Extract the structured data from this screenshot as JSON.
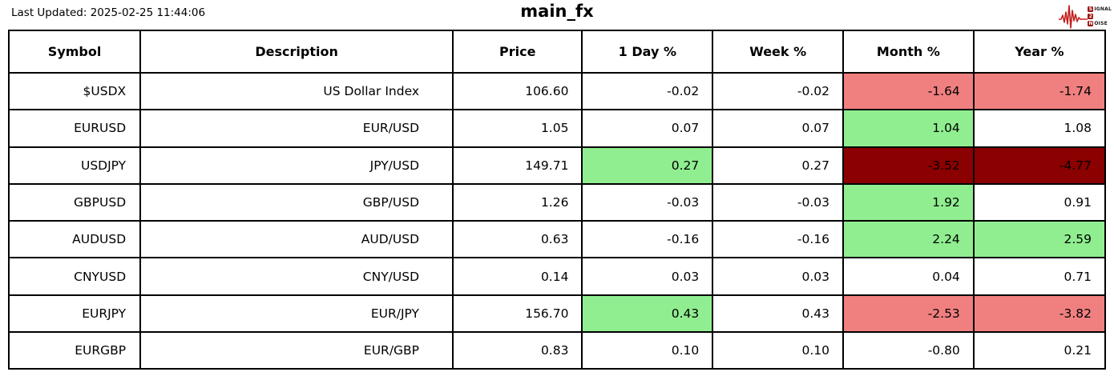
{
  "header": {
    "last_updated": "Last Updated: 2025-02-25 11:44:06"
  },
  "logo": {
    "name": "signal-2-noise-logo",
    "lines": [
      {
        "badge": "S",
        "rest": "IGNAL"
      },
      {
        "badge": "2",
        "rest": ""
      },
      {
        "badge": "N",
        "rest": "OISE"
      }
    ]
  },
  "colors": {
    "up": "#90ee90",
    "down": "#f08080",
    "down_strong": "#8b0000",
    "logo_red": "#c41e1e",
    "border": "#000000"
  },
  "chart_data": {
    "type": "table",
    "title": "main_fx",
    "columns": [
      "Symbol",
      "Description",
      "Price",
      "1 Day %",
      "Week %",
      "Month %",
      "Year %"
    ],
    "rows": [
      {
        "symbol": "$USDX",
        "description": "US Dollar Index",
        "price": "106.60",
        "day": {
          "t": "-0.02",
          "bg": null
        },
        "week": {
          "t": "-0.02",
          "bg": null
        },
        "month": {
          "t": "-1.64",
          "bg": "down"
        },
        "year": {
          "t": "-1.74",
          "bg": "down"
        }
      },
      {
        "symbol": "EURUSD",
        "description": "EUR/USD",
        "price": "1.05",
        "day": {
          "t": "0.07",
          "bg": null
        },
        "week": {
          "t": "0.07",
          "bg": null
        },
        "month": {
          "t": "1.04",
          "bg": "up"
        },
        "year": {
          "t": "1.08",
          "bg": null
        }
      },
      {
        "symbol": "USDJPY",
        "description": "JPY/USD",
        "price": "149.71",
        "day": {
          "t": "0.27",
          "bg": "up"
        },
        "week": {
          "t": "0.27",
          "bg": null
        },
        "month": {
          "t": "-3.52",
          "bg": "down_strong"
        },
        "year": {
          "t": "-4.77",
          "bg": "down_strong"
        }
      },
      {
        "symbol": "GBPUSD",
        "description": "GBP/USD",
        "price": "1.26",
        "day": {
          "t": "-0.03",
          "bg": null
        },
        "week": {
          "t": "-0.03",
          "bg": null
        },
        "month": {
          "t": "1.92",
          "bg": "up"
        },
        "year": {
          "t": "0.91",
          "bg": null
        }
      },
      {
        "symbol": "AUDUSD",
        "description": "AUD/USD",
        "price": "0.63",
        "day": {
          "t": "-0.16",
          "bg": null
        },
        "week": {
          "t": "-0.16",
          "bg": null
        },
        "month": {
          "t": "2.24",
          "bg": "up"
        },
        "year": {
          "t": "2.59",
          "bg": "up"
        }
      },
      {
        "symbol": "CNYUSD",
        "description": "CNY/USD",
        "price": "0.14",
        "day": {
          "t": "0.03",
          "bg": null
        },
        "week": {
          "t": "0.03",
          "bg": null
        },
        "month": {
          "t": "0.04",
          "bg": null
        },
        "year": {
          "t": "0.71",
          "bg": null
        }
      },
      {
        "symbol": "EURJPY",
        "description": "EUR/JPY",
        "price": "156.70",
        "day": {
          "t": "0.43",
          "bg": "up"
        },
        "week": {
          "t": "0.43",
          "bg": null
        },
        "month": {
          "t": "-2.53",
          "bg": "down"
        },
        "year": {
          "t": "-3.82",
          "bg": "down"
        }
      },
      {
        "symbol": "EURGBP",
        "description": "EUR/GBP",
        "price": "0.83",
        "day": {
          "t": "0.10",
          "bg": null
        },
        "week": {
          "t": "0.10",
          "bg": null
        },
        "month": {
          "t": "-0.80",
          "bg": null
        },
        "year": {
          "t": "0.21",
          "bg": null
        }
      }
    ]
  }
}
